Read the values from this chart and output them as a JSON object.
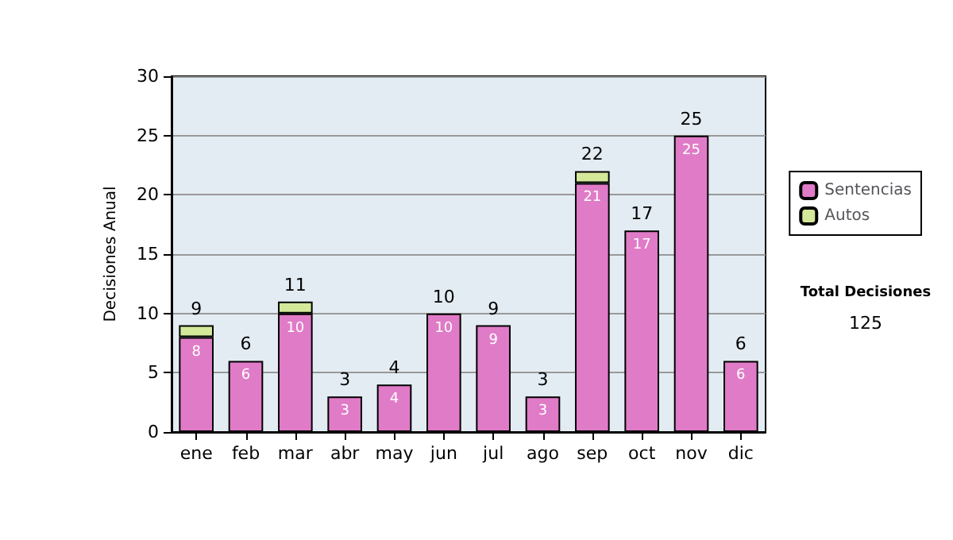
{
  "chart_data": {
    "type": "bar",
    "stacked": true,
    "ylabel": "Decisiones Anual",
    "categories": [
      "ene",
      "feb",
      "mar",
      "abr",
      "may",
      "jun",
      "jul",
      "ago",
      "sep",
      "oct",
      "nov",
      "dic"
    ],
    "series": [
      {
        "name": "Sentencias",
        "color": "#e07bc7",
        "values": [
          8,
          6,
          10,
          3,
          4,
          10,
          9,
          3,
          21,
          17,
          25,
          6
        ],
        "value_labels": [
          "8",
          "6",
          "10",
          "3",
          "4",
          "10",
          "9",
          "3",
          "21",
          "17",
          "25",
          "6"
        ]
      },
      {
        "name": "Autos",
        "color": "#d4e89a",
        "values": [
          1,
          0,
          1,
          0,
          0,
          0,
          0,
          0,
          1,
          0,
          0,
          0
        ]
      }
    ],
    "totals": [
      "9",
      "6",
      "11",
      "3",
      "4",
      "10",
      "9",
      "3",
      "22",
      "17",
      "25",
      "6"
    ],
    "ylim": [
      0,
      30
    ],
    "yticks": [
      0,
      5,
      10,
      15,
      20,
      25,
      30
    ],
    "grid": "y",
    "legend": "right",
    "annotations": [
      "Total Decisiones",
      "125"
    ]
  }
}
